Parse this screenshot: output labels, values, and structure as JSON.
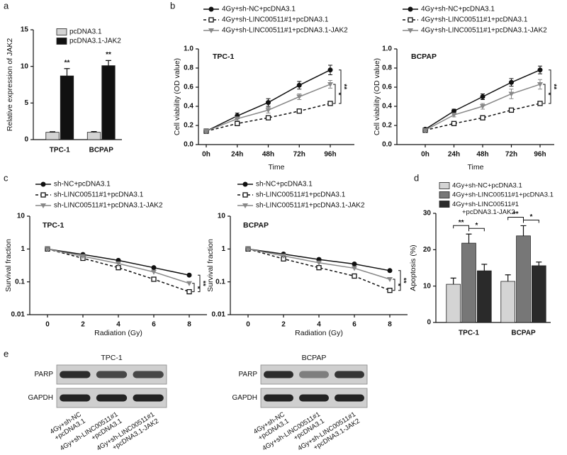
{
  "panel_labels": [
    "a",
    "b",
    "c",
    "d",
    "e"
  ],
  "chart_data": [
    {
      "type": "bar",
      "ylabel": "Relative expression of JAK2",
      "categories": [
        "TPC-1",
        "BCPAP"
      ],
      "series": [
        {
          "name": "pcDNA3.1",
          "color": "#d4d4d4",
          "values": [
            1,
            1
          ],
          "errors": [
            0.08,
            0.1
          ]
        },
        {
          "name": "pcDNA3.1-JAK2",
          "color": "#111111",
          "values": [
            8.7,
            10.1
          ],
          "errors": [
            1.0,
            0.7
          ]
        }
      ],
      "ylim": [
        0,
        15
      ],
      "yticks": [
        0,
        5,
        10,
        15
      ],
      "annotations": [
        "**",
        "**"
      ]
    },
    {
      "type": "line",
      "subtitle": "TPC-1",
      "xlabel": "Time",
      "ylabel": "Cell viability (OD value)",
      "categories": [
        "0h",
        "24h",
        "48h",
        "72h",
        "96h"
      ],
      "series": [
        {
          "name": "4Gy+sh-NC+pcDNA3.1",
          "color": "#111111",
          "marker": "circle",
          "linestyle": "solid",
          "values": [
            0.14,
            0.3,
            0.44,
            0.62,
            0.78
          ],
          "errors": [
            0.01,
            0.03,
            0.04,
            0.04,
            0.05
          ]
        },
        {
          "name": "4Gy+sh-LINC00511#1+pcDNA3.1",
          "color": "#111111",
          "marker": "square",
          "linestyle": "dashed",
          "values": [
            0.14,
            0.22,
            0.28,
            0.35,
            0.43
          ],
          "errors": [
            0.01,
            0.01,
            0.01,
            0.02,
            0.02
          ]
        },
        {
          "name": "4Gy+sh-LINC00511#1+pcDNA3.1-JAK2",
          "color": "#888888",
          "marker": "triangle-down",
          "linestyle": "solid",
          "values": [
            0.14,
            0.27,
            0.36,
            0.5,
            0.63
          ],
          "errors": [
            0.01,
            0.02,
            0.03,
            0.03,
            0.04
          ]
        }
      ],
      "ylim": [
        0,
        1
      ],
      "yticks": [
        {
          "value": 0,
          "label": "0.0"
        },
        0.2,
        0.4,
        0.6,
        0.8,
        {
          "value": 1,
          "label": "1.0"
        }
      ],
      "annotations": [
        "*",
        "**"
      ]
    },
    {
      "type": "line",
      "subtitle": "BCPAP",
      "xlabel": "Time",
      "ylabel": "Cell viability (OD value)",
      "categories": [
        "0h",
        "24h",
        "48h",
        "72h",
        "96h"
      ],
      "series": [
        {
          "name": "4Gy+sh-NC+pcDNA3.1",
          "color": "#111111",
          "marker": "circle",
          "linestyle": "solid",
          "values": [
            0.16,
            0.35,
            0.5,
            0.65,
            0.78
          ],
          "errors": [
            0.01,
            0.02,
            0.03,
            0.04,
            0.04
          ]
        },
        {
          "name": "4Gy+sh-LINC00511#1+pcDNA3.1",
          "color": "#111111",
          "marker": "square",
          "linestyle": "dashed",
          "values": [
            0.15,
            0.22,
            0.28,
            0.36,
            0.43
          ],
          "errors": [
            0.01,
            0.01,
            0.01,
            0.02,
            0.02
          ]
        },
        {
          "name": "4Gy+sh-LINC00511#1+pcDNA3.1-JAK2",
          "color": "#888888",
          "marker": "triangle-down",
          "linestyle": "solid",
          "values": [
            0.15,
            0.31,
            0.4,
            0.53,
            0.63
          ],
          "errors": [
            0.01,
            0.02,
            0.03,
            0.05,
            0.05
          ]
        }
      ],
      "ylim": [
        0,
        1
      ],
      "yticks": [
        {
          "value": 0,
          "label": "0.0"
        },
        0.2,
        0.4,
        0.6,
        0.8,
        {
          "value": 1,
          "label": "1.0"
        }
      ],
      "annotations": [
        "*",
        "**"
      ]
    },
    {
      "type": "line",
      "subtitle": "TPC-1",
      "xlabel": "Radiation (Gy)",
      "ylabel": "Survival fraction",
      "x": [
        0,
        2,
        4,
        6,
        8
      ],
      "xlim": [
        -1,
        9
      ],
      "xticks": [
        0,
        2,
        4,
        6,
        8
      ],
      "log_y": true,
      "series": [
        {
          "name": "sh-NC+pcDNA3.1",
          "color": "#111111",
          "marker": "circle",
          "linestyle": "solid",
          "values": [
            1,
            0.68,
            0.45,
            0.27,
            0.16
          ]
        },
        {
          "name": "sh-LINC00511#1+pcDNA3.1",
          "color": "#111111",
          "marker": "square",
          "linestyle": "dashed",
          "values": [
            1,
            0.52,
            0.27,
            0.12,
            0.05
          ]
        },
        {
          "name": "sh-LINC00511#1+pcDNA3.1-JAK2",
          "color": "#888888",
          "marker": "triangle-down",
          "linestyle": "solid",
          "values": [
            1,
            0.6,
            0.36,
            0.2,
            0.09
          ]
        }
      ],
      "ylim": [
        0.01,
        10
      ],
      "yticks": [
        0.01,
        0.1,
        1,
        10
      ],
      "annotations": [
        "*",
        "**"
      ]
    },
    {
      "type": "line",
      "subtitle": "BCPAP",
      "xlabel": "Radiation (Gy)",
      "ylabel": "Survival fraction",
      "x": [
        0,
        2,
        4,
        6,
        8
      ],
      "xlim": [
        -1,
        9
      ],
      "xticks": [
        0,
        2,
        4,
        6,
        8
      ],
      "log_y": true,
      "series": [
        {
          "name": "sh-NC+pcDNA3.1",
          "color": "#111111",
          "marker": "circle",
          "linestyle": "solid",
          "values": [
            1,
            0.7,
            0.48,
            0.35,
            0.22
          ]
        },
        {
          "name": "sh-LINC00511#1+pcDNA3.1",
          "color": "#111111",
          "marker": "square",
          "linestyle": "dashed",
          "values": [
            1,
            0.5,
            0.27,
            0.15,
            0.055
          ]
        },
        {
          "name": "sh-LINC00511#1+pcDNA3.1-JAK2",
          "color": "#888888",
          "marker": "triangle-down",
          "linestyle": "solid",
          "values": [
            1,
            0.62,
            0.38,
            0.26,
            0.12
          ]
        }
      ],
      "ylim": [
        0.01,
        10
      ],
      "yticks": [
        0.01,
        0.1,
        1,
        10
      ],
      "annotations": [
        "*",
        "**"
      ]
    },
    {
      "type": "bar",
      "ylabel": "Apoptosis (%)",
      "categories": [
        "TPC-1",
        "BCPAP"
      ],
      "series": [
        {
          "name": "4Gy+sh-NC+pcDNA3.1",
          "color": "#d4d4d4",
          "values": [
            10.5,
            11.3
          ],
          "errors": [
            1.7,
            1.8
          ]
        },
        {
          "name": "4Gy+sh-LINC00511#1+pcDNA3.1",
          "color": "#777777",
          "values": [
            21.8,
            23.8
          ],
          "errors": [
            2.5,
            2.8
          ]
        },
        {
          "name": "4Gy+sh-LINC00511#1+pcDNA3.1-JAK2",
          "color": "#2a2a2a",
          "values": [
            14.2,
            15.6
          ],
          "errors": [
            1.8,
            1.0
          ]
        }
      ],
      "ylim": [
        0,
        30
      ],
      "yticks": [
        0,
        10,
        20,
        30
      ],
      "annotations": [
        "**",
        "*",
        "**",
        "*"
      ]
    }
  ],
  "blots": [
    {
      "title": "TPC-1",
      "rows": [
        "PARP",
        "GAPDH"
      ],
      "lanes": [
        [
          "4Gy+sh-NC",
          "+pcDNA3.1"
        ],
        [
          "4Gy+sh-LINC00511#1",
          "+pcDNA3.1"
        ],
        [
          "4Gy+sh-LINC00511#1",
          "+pcDNA3.1-JAK2"
        ]
      ]
    },
    {
      "title": "BCPAP",
      "rows": [
        "PARP",
        "GAPDH"
      ],
      "lanes": [
        [
          "4Gy+sh-NC",
          "+pcDNA3.1"
        ],
        [
          "4Gy+sh-LINC00511#1",
          "+pcDNA3.1"
        ],
        [
          "4Gy+sh-LINC00511#1",
          "+pcDNA3.1-JAK2"
        ]
      ]
    }
  ]
}
